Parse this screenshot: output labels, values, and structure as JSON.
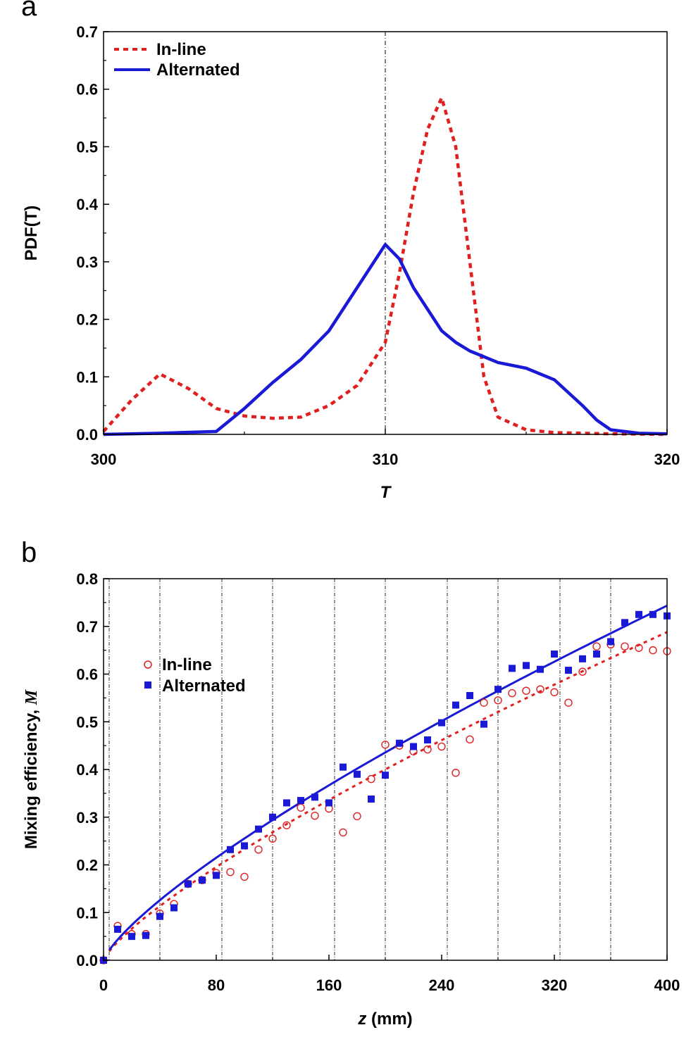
{
  "chart_data": [
    {
      "panel": "a",
      "type": "line",
      "title": "",
      "xlabel": "T",
      "ylabel": "PDF(T)",
      "xlim": [
        300,
        320
      ],
      "ylim": [
        0,
        0.7
      ],
      "xticks": [
        "300",
        "310",
        "320"
      ],
      "yticks": [
        "0.0",
        "0.1",
        "0.2",
        "0.3",
        "0.4",
        "0.5",
        "0.6",
        "0.7"
      ],
      "legend_position": "top-left",
      "reference_lines_x": [
        310
      ],
      "series": [
        {
          "name": "In-line",
          "style": "dashed",
          "color": "#e02020",
          "x": [
            300,
            301,
            302,
            303,
            304,
            305,
            306,
            307,
            308,
            309,
            310,
            310.5,
            311,
            311.5,
            312,
            312.5,
            313,
            313.5,
            314,
            315,
            316,
            318,
            320
          ],
          "y": [
            0.005,
            0.06,
            0.105,
            0.08,
            0.045,
            0.032,
            0.028,
            0.03,
            0.05,
            0.085,
            0.16,
            0.28,
            0.42,
            0.53,
            0.585,
            0.5,
            0.3,
            0.1,
            0.03,
            0.008,
            0.003,
            0.001,
            0.0
          ]
        },
        {
          "name": "Alternated",
          "style": "solid",
          "color": "#1a1ad6",
          "x": [
            300,
            302,
            304,
            305,
            306,
            307,
            308,
            309,
            310,
            310.5,
            311,
            312,
            312.5,
            313,
            314,
            315,
            316,
            317,
            317.5,
            318,
            319,
            320
          ],
          "y": [
            0.0,
            0.002,
            0.005,
            0.045,
            0.09,
            0.13,
            0.18,
            0.255,
            0.33,
            0.305,
            0.255,
            0.18,
            0.16,
            0.145,
            0.125,
            0.115,
            0.095,
            0.05,
            0.025,
            0.008,
            0.002,
            0.001
          ]
        }
      ]
    },
    {
      "panel": "b",
      "type": "scatter",
      "title": "",
      "xlabel": "z (mm)",
      "ylabel": "Mixing efficiency, M",
      "xlim": [
        0,
        400
      ],
      "ylim": [
        0,
        0.8
      ],
      "xticks": [
        "0",
        "80",
        "160",
        "240",
        "320",
        "400"
      ],
      "yticks": [
        "0.0",
        "0.1",
        "0.2",
        "0.3",
        "0.4",
        "0.5",
        "0.6",
        "0.7",
        "0.8"
      ],
      "legend_position": "upper-left",
      "reference_lines_x": [
        4,
        40,
        84,
        120,
        164,
        200,
        244,
        280,
        324,
        360
      ],
      "series": [
        {
          "name": "In-line",
          "marker": "open-circle",
          "color": "#e02020",
          "fit_style": "dashed",
          "fit_equation": "M = 0.00635 * z^0.782",
          "x": [
            0,
            10,
            20,
            30,
            40,
            50,
            60,
            70,
            80,
            90,
            100,
            110,
            120,
            130,
            140,
            150,
            160,
            170,
            180,
            190,
            200,
            210,
            220,
            230,
            240,
            250,
            260,
            270,
            280,
            290,
            300,
            310,
            320,
            330,
            340,
            350,
            360,
            370,
            380,
            390,
            400
          ],
          "y": [
            0.0,
            0.072,
            0.055,
            0.055,
            0.098,
            0.118,
            0.16,
            0.168,
            0.183,
            0.185,
            0.175,
            0.232,
            0.255,
            0.283,
            0.32,
            0.303,
            0.318,
            0.268,
            0.302,
            0.38,
            0.452,
            0.45,
            0.438,
            0.442,
            0.448,
            0.393,
            0.463,
            0.54,
            0.545,
            0.56,
            0.565,
            0.568,
            0.562,
            0.54,
            0.605,
            0.658,
            0.662,
            0.658,
            0.655,
            0.65,
            0.648
          ]
        },
        {
          "name": "Alternated",
          "marker": "filled-square",
          "color": "#1a1ad6",
          "fit_style": "solid",
          "fit_equation": "M = 0.00733 * z^0.771",
          "x": [
            0,
            10,
            20,
            30,
            40,
            50,
            60,
            70,
            80,
            90,
            100,
            110,
            120,
            130,
            140,
            150,
            160,
            170,
            180,
            190,
            200,
            210,
            220,
            230,
            240,
            250,
            260,
            270,
            280,
            290,
            300,
            310,
            320,
            330,
            340,
            350,
            360,
            370,
            380,
            390,
            400
          ],
          "y": [
            0.0,
            0.065,
            0.05,
            0.052,
            0.092,
            0.11,
            0.16,
            0.168,
            0.178,
            0.232,
            0.24,
            0.275,
            0.3,
            0.33,
            0.335,
            0.342,
            0.33,
            0.405,
            0.39,
            0.338,
            0.388,
            0.455,
            0.448,
            0.462,
            0.498,
            0.535,
            0.555,
            0.495,
            0.568,
            0.612,
            0.618,
            0.61,
            0.642,
            0.608,
            0.632,
            0.642,
            0.668,
            0.708,
            0.725,
            0.725,
            0.722
          ]
        }
      ]
    }
  ],
  "panel_a": {
    "letter": "a",
    "legend": [
      "In-line",
      "Alternated"
    ]
  },
  "panel_b": {
    "letter": "b",
    "legend": [
      "In-line",
      "Alternated"
    ],
    "ylabel_prefix": "Mixing efficiency, ",
    "ylabel_symbol": "M",
    "xlabel_var": "z",
    "xlabel_unit": " (mm)"
  },
  "colors": {
    "inline": "#e02020",
    "alternated": "#1a1ad6"
  }
}
